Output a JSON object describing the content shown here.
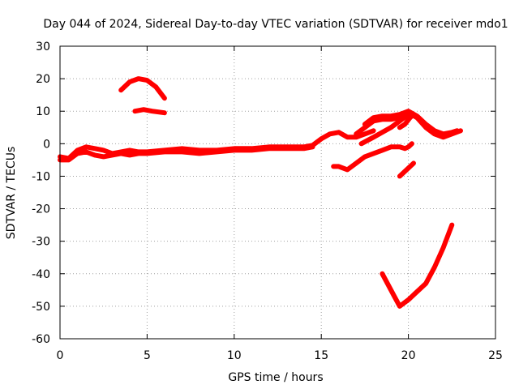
{
  "chart_data": {
    "type": "line",
    "title": "Day 044 of 2024, Sidereal Day-to-day VTEC variation (SDTVAR) for receiver mdo1",
    "xlabel": "GPS time / hours",
    "ylabel": "SDTVAR / TECUs",
    "xlim": [
      0,
      25
    ],
    "ylim": [
      -60,
      30
    ],
    "xticks": [
      0,
      5,
      10,
      15,
      20,
      25
    ],
    "yticks": [
      -60,
      -50,
      -40,
      -30,
      -20,
      -10,
      0,
      10,
      20,
      30
    ],
    "grid": true,
    "line_color": "#ff0000",
    "series": [
      {
        "name": "trace-main-upper",
        "points": [
          [
            0,
            -4
          ],
          [
            0.5,
            -4.5
          ],
          [
            1,
            -2
          ],
          [
            1.5,
            -1
          ],
          [
            2,
            -1.5
          ],
          [
            2.5,
            -2
          ],
          [
            3,
            -3
          ],
          [
            3.5,
            -2.5
          ],
          [
            4,
            -2
          ],
          [
            4.5,
            -2.5
          ],
          [
            5,
            -2.5
          ],
          [
            6,
            -2
          ],
          [
            7,
            -1.5
          ],
          [
            8,
            -2
          ],
          [
            9,
            -2
          ],
          [
            10,
            -1.5
          ],
          [
            11,
            -1.5
          ],
          [
            12,
            -1
          ],
          [
            13,
            -1
          ],
          [
            14,
            -1
          ],
          [
            14.5,
            -0.5
          ],
          [
            15,
            1.5
          ],
          [
            15.5,
            3
          ],
          [
            16,
            3.5
          ],
          [
            16.5,
            2
          ],
          [
            17,
            2
          ],
          [
            17.5,
            3
          ],
          [
            18,
            4
          ]
        ]
      },
      {
        "name": "trace-main-lower",
        "points": [
          [
            0,
            -5
          ],
          [
            0.5,
            -5
          ],
          [
            1,
            -3
          ],
          [
            1.5,
            -2.5
          ],
          [
            2,
            -3.5
          ],
          [
            2.5,
            -4
          ],
          [
            3,
            -3.5
          ],
          [
            3.5,
            -3
          ],
          [
            4,
            -3.5
          ],
          [
            4.5,
            -3
          ],
          [
            5,
            -3
          ],
          [
            6,
            -2.5
          ],
          [
            7,
            -2.5
          ],
          [
            8,
            -3
          ],
          [
            9,
            -2.5
          ],
          [
            10,
            -2
          ],
          [
            11,
            -2
          ],
          [
            12,
            -1.5
          ],
          [
            13,
            -1.5
          ],
          [
            14,
            -1.5
          ],
          [
            14.5,
            -1
          ]
        ]
      },
      {
        "name": "trace-arc-high",
        "points": [
          [
            3.5,
            16.5
          ],
          [
            4,
            19
          ],
          [
            4.5,
            20
          ],
          [
            5,
            19.5
          ],
          [
            5.5,
            17.5
          ],
          [
            6,
            14
          ]
        ]
      },
      {
        "name": "trace-arc-ten",
        "points": [
          [
            4.3,
            10
          ],
          [
            4.8,
            10.5
          ],
          [
            5.3,
            10
          ],
          [
            6,
            9.5
          ]
        ]
      },
      {
        "name": "trace-late-rise",
        "points": [
          [
            17,
            3
          ],
          [
            17.5,
            5
          ],
          [
            18,
            7
          ],
          [
            18.5,
            7.5
          ],
          [
            19,
            7.5
          ],
          [
            19.5,
            8
          ],
          [
            20,
            9.5
          ],
          [
            20.5,
            8
          ],
          [
            21,
            5
          ],
          [
            21.5,
            3
          ],
          [
            22,
            2
          ],
          [
            22.5,
            3
          ],
          [
            23,
            4
          ]
        ]
      },
      {
        "name": "trace-late-upper",
        "points": [
          [
            17.5,
            6
          ],
          [
            18,
            8
          ],
          [
            18.5,
            8.5
          ],
          [
            19,
            8.5
          ],
          [
            19.5,
            9
          ],
          [
            20,
            10
          ],
          [
            20.5,
            8.5
          ],
          [
            21,
            6
          ],
          [
            21.5,
            4
          ],
          [
            22,
            3
          ],
          [
            22.5,
            3.5
          ],
          [
            22.8,
            4
          ]
        ]
      },
      {
        "name": "trace-late-diagonal",
        "points": [
          [
            17.3,
            0
          ],
          [
            18,
            2
          ],
          [
            18.5,
            3.5
          ],
          [
            19,
            5
          ],
          [
            19.5,
            7
          ],
          [
            20,
            9
          ]
        ]
      },
      {
        "name": "trace-dip-hook",
        "points": [
          [
            19.5,
            5
          ],
          [
            19.8,
            6
          ],
          [
            20.1,
            8
          ],
          [
            20.3,
            9
          ]
        ]
      },
      {
        "name": "trace-neg-seven",
        "points": [
          [
            15.7,
            -7
          ],
          [
            16,
            -7
          ],
          [
            16.5,
            -8
          ],
          [
            17,
            -6
          ],
          [
            17.5,
            -4
          ],
          [
            18,
            -3
          ],
          [
            18.5,
            -2
          ],
          [
            19,
            -1
          ],
          [
            19.5,
            -1
          ],
          [
            19.8,
            -1.5
          ],
          [
            20,
            -1
          ],
          [
            20.2,
            0
          ]
        ]
      },
      {
        "name": "trace-short-neg",
        "points": [
          [
            19.5,
            -10
          ],
          [
            19.8,
            -8.5
          ],
          [
            20.1,
            -7
          ],
          [
            20.3,
            -6
          ]
        ]
      },
      {
        "name": "trace-deep-dip",
        "points": [
          [
            18.5,
            -40
          ],
          [
            18.8,
            -43
          ],
          [
            19.2,
            -47
          ],
          [
            19.5,
            -50
          ],
          [
            20,
            -48
          ],
          [
            21,
            -43
          ],
          [
            21.5,
            -38
          ],
          [
            22,
            -32
          ],
          [
            22.5,
            -25
          ]
        ]
      }
    ]
  }
}
